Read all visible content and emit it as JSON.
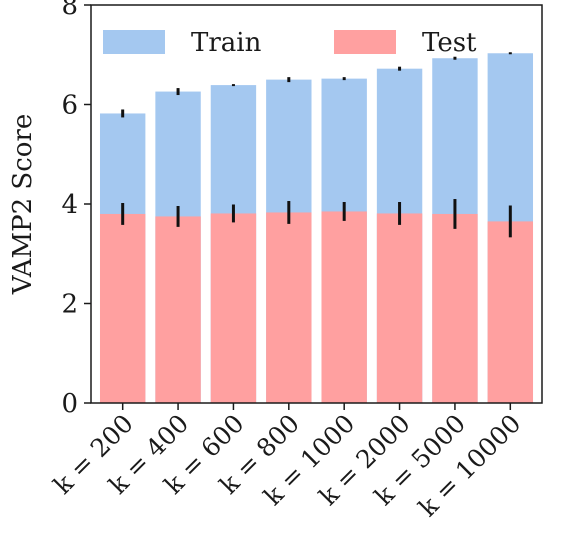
{
  "chart_data": {
    "type": "bar",
    "ylabel": "VAMP2 Score",
    "xlabel": "",
    "title": "",
    "ylim": [
      0,
      8
    ],
    "yticks": [
      0,
      2,
      4,
      6,
      8
    ],
    "grid": false,
    "legend_position": "top",
    "categories": [
      "k = 200",
      "k = 400",
      "k = 600",
      "k = 800",
      "k = 1000",
      "k = 2000",
      "k = 5000",
      "k = 10000"
    ],
    "series": [
      {
        "name": "Train",
        "color": "#a4c8f0",
        "values": [
          5.82,
          6.26,
          6.39,
          6.5,
          6.52,
          6.72,
          6.93,
          7.03
        ],
        "errors": [
          0.08,
          0.07,
          0.02,
          0.05,
          0.03,
          0.04,
          0.03,
          0.02
        ]
      },
      {
        "name": "Test",
        "color": "#ffa0a0",
        "values": [
          3.8,
          3.75,
          3.81,
          3.83,
          3.85,
          3.81,
          3.8,
          3.65
        ],
        "errors": [
          0.22,
          0.21,
          0.18,
          0.23,
          0.19,
          0.23,
          0.3,
          0.32
        ]
      }
    ]
  }
}
